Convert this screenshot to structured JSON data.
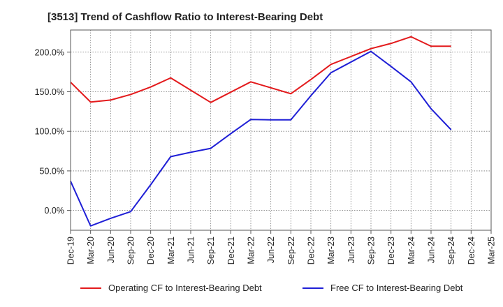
{
  "chart_data": {
    "type": "line",
    "title": "[3513]  Trend of Cashflow Ratio to Interest-Bearing Debt",
    "categories": [
      "Dec-19",
      "Mar-20",
      "Jun-20",
      "Sep-20",
      "Dec-20",
      "Mar-21",
      "Jun-21",
      "Sep-21",
      "Dec-21",
      "Mar-22",
      "Jun-22",
      "Sep-22",
      "Dec-22",
      "Mar-23",
      "Jun-23",
      "Sep-23",
      "Dec-23",
      "Mar-24",
      "Jun-24",
      "Sep-24",
      "Dec-24",
      "Mar-25"
    ],
    "yticks": [
      "0.0%",
      "50.0%",
      "100.0%",
      "150.0%",
      "200.0%"
    ],
    "ylim": [
      -25,
      228
    ],
    "grid": true,
    "legend_position": "bottom",
    "series": [
      {
        "name": "Operating CF to Interest-Bearing Debt",
        "color": "#e31a1c",
        "values": [
          162,
          137,
          139.5,
          146.5,
          156,
          167.5,
          152,
          136.5,
          149.5,
          162.5,
          155,
          147.5,
          165.5,
          184.5,
          194.5,
          204.5,
          211,
          219.5,
          207.5,
          207.5,
          null,
          null
        ]
      },
      {
        "name": "Free CF to Interest-Bearing Debt",
        "color": "#1f1fd6",
        "values": [
          37,
          -19.5,
          -10,
          -1.5,
          32.5,
          68,
          73.5,
          78.5,
          97,
          115,
          114.5,
          114.5,
          145,
          174,
          187.5,
          201,
          182,
          162.5,
          128.5,
          102,
          null,
          null
        ]
      }
    ]
  }
}
